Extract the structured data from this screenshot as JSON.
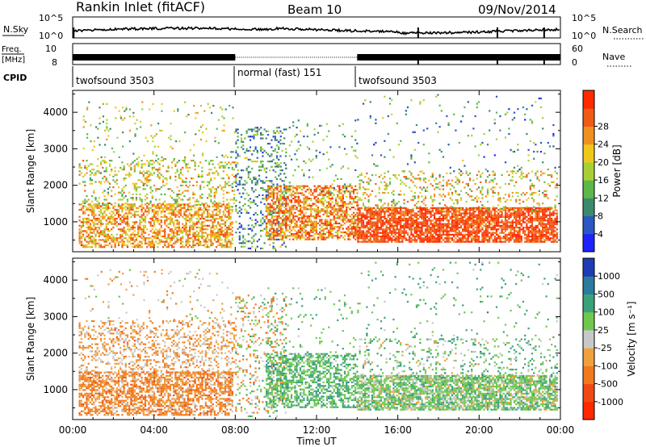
{
  "header": {
    "station": "Rankin Inlet (fitACF)",
    "beam": "Beam 10",
    "date": "09/Nov/2014"
  },
  "top_panels": {
    "nsky_label": "N.Sky",
    "nsky_ticks": [
      "10^5",
      "10^0"
    ],
    "nsearch_label": "N.Search",
    "nsearch_ticks": [
      "10^5",
      "10^0"
    ],
    "freq_label": "Freq.",
    "freq_unit": "[MHz]",
    "freq_ticks": [
      "10",
      "8"
    ],
    "nave_label": "Nave",
    "nave_ticks": [
      "60",
      "0"
    ],
    "cpid_label": "CPID",
    "cpid_segments": [
      {
        "label": "twofsound 3503",
        "start": 0,
        "end": 8
      },
      {
        "label": "normal (fast) 151",
        "start": 8,
        "end": 14
      },
      {
        "label": "twofsound 3503",
        "start": 14,
        "end": 24
      }
    ]
  },
  "x_axis": {
    "label": "Time UT",
    "ticks": [
      "00:00",
      "04:00",
      "08:00",
      "12:00",
      "16:00",
      "20:00",
      "00:00"
    ]
  },
  "chart_data": [
    {
      "type": "heatmap",
      "name": "power",
      "ylabel": "Slant Range [km]",
      "yticks": [
        1000,
        2000,
        3000,
        4000
      ],
      "ylim": [
        180,
        4600
      ],
      "xlim_hours": [
        0,
        24
      ],
      "colorbar_title": "Power [dB]",
      "colorbar_ticks": [
        "4",
        "8",
        "12",
        "16",
        "20",
        "24",
        "28"
      ],
      "colorbar_colors": [
        "#1e22ff",
        "#2c56c4",
        "#3c8a6c",
        "#5cb84a",
        "#a8d036",
        "#f0c81c",
        "#f09020",
        "#f05a14",
        "#ff2a00"
      ],
      "scatter_bands": [
        {
          "t0": 0.3,
          "t1": 7.9,
          "r0": 300,
          "r1": 1500,
          "c": [
            0.55,
            0.6,
            0.7,
            0.8,
            0.85,
            0.9
          ],
          "d": 0.55
        },
        {
          "t0": 0.3,
          "t1": 8.0,
          "r0": 1400,
          "r1": 2700,
          "c": [
            0.35,
            0.45,
            0.55,
            0.65,
            0.8
          ],
          "d": 0.25
        },
        {
          "t0": 0.5,
          "t1": 8.0,
          "r0": 2700,
          "r1": 4300,
          "c": [
            0.3,
            0.45,
            0.6,
            0.7
          ],
          "d": 0.05
        },
        {
          "t0": 8.0,
          "t1": 10.5,
          "r0": 250,
          "r1": 3600,
          "c": [
            0.1,
            0.15,
            0.25,
            0.35,
            0.5
          ],
          "d": 0.22
        },
        {
          "t0": 9.5,
          "t1": 14.0,
          "r0": 500,
          "r1": 2000,
          "c": [
            0.55,
            0.7,
            0.8,
            0.9,
            0.95
          ],
          "d": 0.6
        },
        {
          "t0": 9.5,
          "t1": 14.0,
          "r0": 1800,
          "r1": 3800,
          "c": [
            0.15,
            0.3,
            0.4,
            0.5
          ],
          "d": 0.06
        },
        {
          "t0": 14.0,
          "t1": 23.8,
          "r0": 450,
          "r1": 1400,
          "c": [
            0.8,
            0.9,
            0.95,
            1.0
          ],
          "d": 0.78
        },
        {
          "t0": 14.0,
          "t1": 23.8,
          "r0": 1300,
          "r1": 2400,
          "c": [
            0.35,
            0.5,
            0.6,
            0.75,
            0.85
          ],
          "d": 0.18
        },
        {
          "t0": 14.0,
          "t1": 23.8,
          "r0": 2400,
          "r1": 4500,
          "c": [
            0.1,
            0.2,
            0.35,
            0.5
          ],
          "d": 0.035
        }
      ]
    },
    {
      "type": "heatmap",
      "name": "velocity",
      "ylabel": "Slant Range [km]",
      "yticks": [
        1000,
        2000,
        3000,
        4000
      ],
      "ylim": [
        180,
        4600
      ],
      "xlim_hours": [
        0,
        24
      ],
      "colorbar_title": "Velocity [m s⁻¹]",
      "colorbar_ticks": [
        "1000",
        "500",
        "100",
        "25",
        "-25",
        "-100",
        "-500",
        "-1000"
      ],
      "colorbar_colors": [
        "#1e3cb4",
        "#2c7a9c",
        "#3aa27a",
        "#6ec84e",
        "#c8c8c8",
        "#f0a03c",
        "#f07a1e",
        "#f04a14",
        "#ff2800"
      ],
      "scatter_bands": [
        {
          "t0": 0.3,
          "t1": 7.9,
          "r0": 300,
          "r1": 1500,
          "c": [
            0.2,
            0.25,
            0.3,
            0.3,
            0.45
          ],
          "d": 0.6
        },
        {
          "t0": 0.3,
          "t1": 8.0,
          "r0": 1400,
          "r1": 2900,
          "c": [
            0.45,
            0.45,
            0.3,
            0.25
          ],
          "d": 0.3
        },
        {
          "t0": 0.5,
          "t1": 8.0,
          "r0": 2900,
          "r1": 4300,
          "c": [
            0.3,
            0.45,
            0.55
          ],
          "d": 0.04
        },
        {
          "t0": 8.0,
          "t1": 10.5,
          "r0": 250,
          "r1": 3600,
          "c": [
            0.45,
            0.6,
            0.3,
            0.25,
            0.7
          ],
          "d": 0.2
        },
        {
          "t0": 9.5,
          "t1": 14.0,
          "r0": 500,
          "r1": 2000,
          "c": [
            0.6,
            0.65,
            0.7,
            0.75
          ],
          "d": 0.55
        },
        {
          "t0": 9.5,
          "t1": 14.0,
          "r0": 1800,
          "r1": 3800,
          "c": [
            0.6,
            0.65,
            0.7
          ],
          "d": 0.06
        },
        {
          "t0": 14.0,
          "t1": 23.8,
          "r0": 450,
          "r1": 1400,
          "c": [
            0.45,
            0.6,
            0.65,
            0.7
          ],
          "d": 0.78
        },
        {
          "t0": 14.0,
          "t1": 23.8,
          "r0": 1300,
          "r1": 2400,
          "c": [
            0.6,
            0.7,
            0.75,
            0.45
          ],
          "d": 0.18
        },
        {
          "t0": 14.0,
          "t1": 23.8,
          "r0": 2400,
          "r1": 4500,
          "c": [
            0.6,
            0.7,
            0.75
          ],
          "d": 0.035
        }
      ]
    }
  ]
}
